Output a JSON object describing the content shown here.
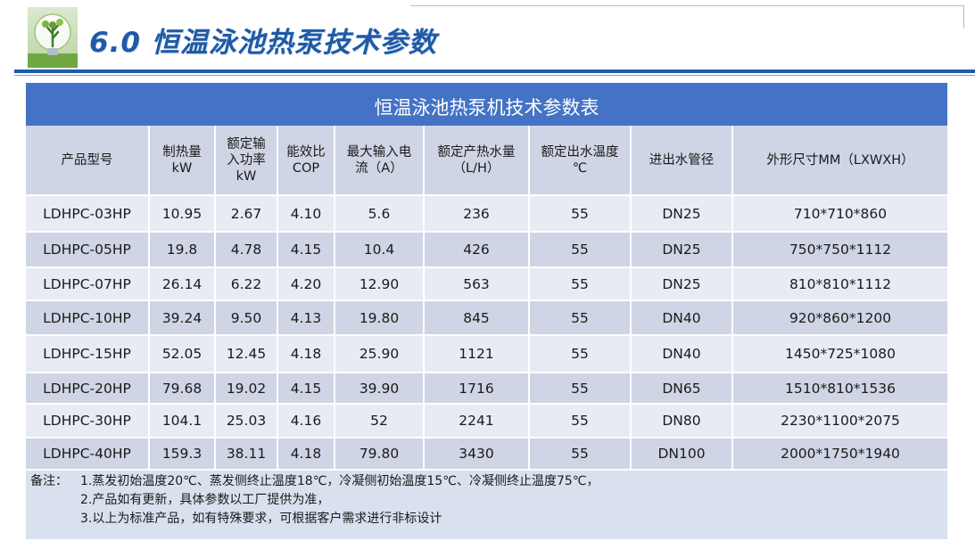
{
  "header": {
    "title": "6.0 恒温泳池热泵技术参数"
  },
  "table": {
    "title": "恒温泳池热泵机技术参数表",
    "columns": [
      "产品型号",
      "制热量\nkW",
      "额定输\n入功率\nkW",
      "能效比\nCOP",
      "最大输入电\n流（A）",
      "额定产热水量\n（L/H）",
      "额定出水温度\n℃",
      "进出水管径",
      "外形尺寸MM（LXWXH）"
    ],
    "rows": [
      [
        "LDHPC-03HP",
        "10.95",
        "2.67",
        "4.10",
        "5.6",
        "236",
        "55",
        "DN25",
        "710*710*860"
      ],
      [
        "LDHPC-05HP",
        "19.8",
        "4.78",
        "4.15",
        "10.4",
        "426",
        "55",
        "DN25",
        "750*750*1112"
      ],
      [
        "LDHPC-07HP",
        "26.14",
        "6.22",
        "4.20",
        "12.90",
        "563",
        "55",
        "DN25",
        "810*810*1112"
      ],
      [
        "LDHPC-10HP",
        "39.24",
        "9.50",
        "4.13",
        "19.80",
        "845",
        "55",
        "DN40",
        "920*860*1200"
      ],
      [
        "LDHPC-15HP",
        "52.05",
        "12.45",
        "4.18",
        "25.90",
        "1121",
        "55",
        "DN40",
        "1450*725*1080"
      ],
      [
        "LDHPC-20HP",
        "79.68",
        "19.02",
        "4.15",
        "39.90",
        "1716",
        "55",
        "DN65",
        "1510*810*1536"
      ],
      [
        "LDHPC-30HP",
        "104.1",
        "25.03",
        "4.16",
        "52",
        "2241",
        "55",
        "DN80",
        "2230*1100*2075"
      ],
      [
        "LDHPC-40HP",
        "159.3",
        "38.11",
        "4.18",
        "79.80",
        "3430",
        "55",
        "DN100",
        "2000*1750*1940"
      ]
    ]
  },
  "notes": {
    "label": "备注：",
    "lines": [
      "1.蒸发初始温度20℃、蒸发侧终止温度18℃，冷凝侧初始温度15℃、冷凝侧终止温度75℃，",
      "2.产品如有更新，具体参数以工厂提供为准，",
      "3.以上为标准产品，如有特殊要求，可根据客户需求进行非标设计"
    ]
  }
}
